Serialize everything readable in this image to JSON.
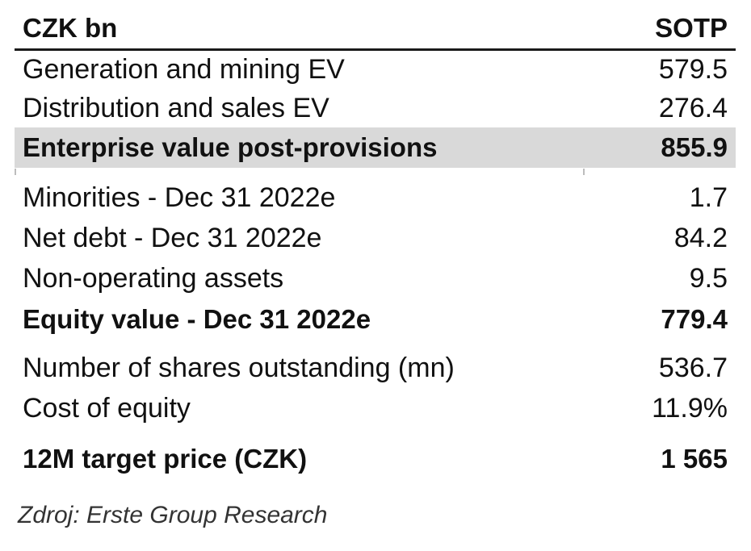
{
  "header": {
    "label": "CZK bn",
    "column": "SOTP"
  },
  "rows": [
    {
      "label": "Generation and mining EV",
      "value": "579.5"
    },
    {
      "label": "Distribution and sales EV",
      "value": "276.4"
    },
    {
      "label": "Enterprise value post-provisions",
      "value": "855.9"
    },
    {
      "label": "Minorities - Dec 31 2022e",
      "value": "1.7"
    },
    {
      "label": "Net debt - Dec 31 2022e",
      "value": "84.2"
    },
    {
      "label": "Non-operating assets",
      "value": "9.5"
    },
    {
      "label": "Equity value - Dec 31 2022e",
      "value": "779.4"
    },
    {
      "label": "Number of shares outstanding (mn)",
      "value": "536.7"
    },
    {
      "label": "Cost of equity",
      "value": "11.9%"
    },
    {
      "label": "12M target price (CZK)",
      "value": "1 565"
    }
  ],
  "source": "Zdroj: Erste Group Research",
  "colors": {
    "highlight_row": "#d9d9d9",
    "rule": "#1a1a1a"
  }
}
